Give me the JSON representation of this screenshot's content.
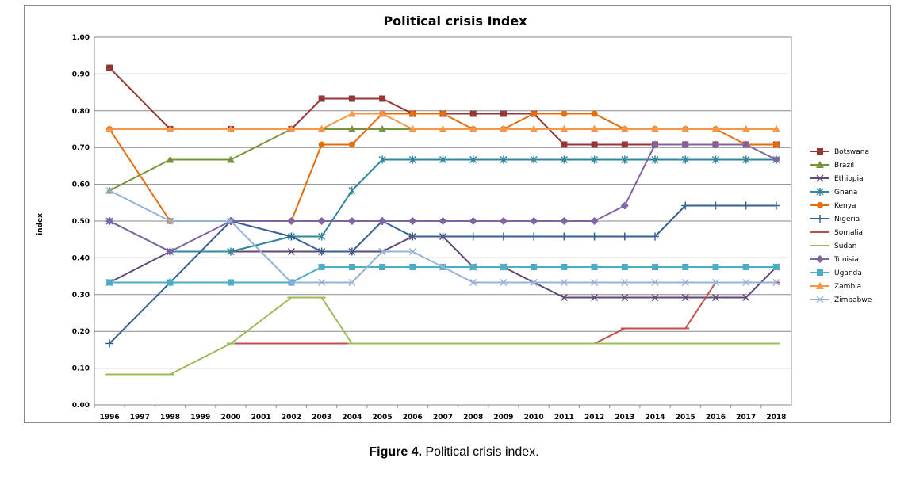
{
  "caption": {
    "label": "Figure 4.",
    "text": "Political crisis index."
  },
  "chart_data": {
    "type": "line",
    "title": "Political crisis Index",
    "xlabel": "",
    "ylabel": "index",
    "ylim": [
      0,
      1
    ],
    "yticks": [
      "0.00",
      "0.10",
      "0.20",
      "0.30",
      "0.40",
      "0.50",
      "0.60",
      "0.70",
      "0.80",
      "0.90",
      "1.00"
    ],
    "categories": [
      "1996",
      "1997",
      "1998",
      "1999",
      "2000",
      "2001",
      "2002",
      "2003",
      "2004",
      "2005",
      "2006",
      "2007",
      "2008",
      "2009",
      "2010",
      "2011",
      "2012",
      "2013",
      "2014",
      "2015",
      "2016",
      "2017",
      "2018"
    ],
    "grid": true,
    "legend": "right",
    "series": [
      {
        "name": "Botswana",
        "color": "#943634",
        "marker": "square",
        "points": [
          [
            "1996",
            0.917
          ],
          [
            "1998",
            0.75
          ],
          [
            "2000",
            0.75
          ],
          [
            "2002",
            0.75
          ],
          [
            "2003",
            0.833
          ],
          [
            "2004",
            0.833
          ],
          [
            "2005",
            0.833
          ],
          [
            "2006",
            0.792
          ],
          [
            "2007",
            0.792
          ],
          [
            "2008",
            0.792
          ],
          [
            "2009",
            0.792
          ],
          [
            "2010",
            0.792
          ],
          [
            "2011",
            0.708
          ],
          [
            "2012",
            0.708
          ],
          [
            "2013",
            0.708
          ],
          [
            "2014",
            0.708
          ],
          [
            "2015",
            0.708
          ],
          [
            "2016",
            0.708
          ],
          [
            "2017",
            0.708
          ],
          [
            "2018",
            0.708
          ]
        ]
      },
      {
        "name": "Brazil",
        "color": "#77933c",
        "marker": "triangle",
        "points": [
          [
            "1996",
            0.583
          ],
          [
            "1998",
            0.667
          ],
          [
            "2000",
            0.667
          ],
          [
            "2002",
            0.75
          ],
          [
            "2003",
            0.75
          ],
          [
            "2004",
            0.75
          ],
          [
            "2005",
            0.75
          ],
          [
            "2006",
            0.75
          ],
          [
            "2007",
            0.75
          ],
          [
            "2008",
            0.75
          ],
          [
            "2009",
            0.75
          ],
          [
            "2010",
            0.75
          ],
          [
            "2011",
            0.75
          ],
          [
            "2012",
            0.75
          ],
          [
            "2013",
            0.75
          ],
          [
            "2014",
            0.75
          ],
          [
            "2015",
            0.75
          ],
          [
            "2016",
            0.75
          ],
          [
            "2017",
            0.75
          ],
          [
            "2018",
            0.75
          ]
        ]
      },
      {
        "name": "Ethiopia",
        "color": "#5f497a",
        "marker": "x",
        "points": [
          [
            "1996",
            0.333
          ],
          [
            "1998",
            0.417
          ],
          [
            "2000",
            0.417
          ],
          [
            "2002",
            0.417
          ],
          [
            "2003",
            0.417
          ],
          [
            "2004",
            0.417
          ],
          [
            "2005",
            0.417
          ],
          [
            "2006",
            0.458
          ],
          [
            "2007",
            0.458
          ],
          [
            "2008",
            0.375
          ],
          [
            "2009",
            0.375
          ],
          [
            "2010",
            0.333
          ],
          [
            "2011",
            0.292
          ],
          [
            "2012",
            0.292
          ],
          [
            "2013",
            0.292
          ],
          [
            "2014",
            0.292
          ],
          [
            "2015",
            0.292
          ],
          [
            "2016",
            0.292
          ],
          [
            "2017",
            0.292
          ],
          [
            "2018",
            0.375
          ]
        ]
      },
      {
        "name": "Ghana",
        "color": "#31859c",
        "marker": "asterisk",
        "points": [
          [
            "1996",
            0.5
          ],
          [
            "1998",
            0.417
          ],
          [
            "2000",
            0.417
          ],
          [
            "2002",
            0.458
          ],
          [
            "2003",
            0.458
          ],
          [
            "2004",
            0.583
          ],
          [
            "2005",
            0.667
          ],
          [
            "2006",
            0.667
          ],
          [
            "2007",
            0.667
          ],
          [
            "2008",
            0.667
          ],
          [
            "2009",
            0.667
          ],
          [
            "2010",
            0.667
          ],
          [
            "2011",
            0.667
          ],
          [
            "2012",
            0.667
          ],
          [
            "2013",
            0.667
          ],
          [
            "2014",
            0.667
          ],
          [
            "2015",
            0.667
          ],
          [
            "2016",
            0.667
          ],
          [
            "2017",
            0.667
          ],
          [
            "2018",
            0.667
          ]
        ]
      },
      {
        "name": "Kenya",
        "color": "#e46c0a",
        "marker": "circle",
        "points": [
          [
            "1996",
            0.75
          ],
          [
            "1998",
            0.5
          ],
          [
            "2000",
            0.5
          ],
          [
            "2002",
            0.5
          ],
          [
            "2003",
            0.708
          ],
          [
            "2004",
            0.708
          ],
          [
            "2005",
            0.792
          ],
          [
            "2006",
            0.792
          ],
          [
            "2007",
            0.792
          ],
          [
            "2008",
            0.75
          ],
          [
            "2009",
            0.75
          ],
          [
            "2010",
            0.792
          ],
          [
            "2011",
            0.792
          ],
          [
            "2012",
            0.792
          ],
          [
            "2013",
            0.75
          ],
          [
            "2014",
            0.75
          ],
          [
            "2015",
            0.75
          ],
          [
            "2016",
            0.75
          ],
          [
            "2017",
            0.708
          ],
          [
            "2018",
            0.708
          ]
        ]
      },
      {
        "name": "Nigeria",
        "color": "#366092",
        "marker": "plus",
        "points": [
          [
            "1996",
            0.167
          ],
          [
            "1998",
            0.333
          ],
          [
            "2000",
            0.5
          ],
          [
            "2002",
            0.458
          ],
          [
            "2003",
            0.417
          ],
          [
            "2004",
            0.417
          ],
          [
            "2005",
            0.5
          ],
          [
            "2006",
            0.458
          ],
          [
            "2007",
            0.458
          ],
          [
            "2008",
            0.458
          ],
          [
            "2009",
            0.458
          ],
          [
            "2010",
            0.458
          ],
          [
            "2011",
            0.458
          ],
          [
            "2012",
            0.458
          ],
          [
            "2013",
            0.458
          ],
          [
            "2014",
            0.458
          ],
          [
            "2015",
            0.542
          ],
          [
            "2016",
            0.542
          ],
          [
            "2017",
            0.542
          ],
          [
            "2018",
            0.542
          ]
        ]
      },
      {
        "name": "Somalia",
        "color": "#c0504d",
        "marker": "dash",
        "points": [
          [
            "2000",
            0.167
          ],
          [
            "2002",
            0.167
          ],
          [
            "2003",
            0.167
          ],
          [
            "2004",
            0.167
          ],
          [
            "2005",
            0.167
          ],
          [
            "2006",
            0.167
          ],
          [
            "2007",
            0.167
          ],
          [
            "2008",
            0.167
          ],
          [
            "2009",
            0.167
          ],
          [
            "2010",
            0.167
          ],
          [
            "2011",
            0.167
          ],
          [
            "2012",
            0.167
          ],
          [
            "2013",
            0.208
          ],
          [
            "2014",
            0.208
          ],
          [
            "2015",
            0.208
          ],
          [
            "2016",
            0.333
          ],
          [
            "2017",
            0.333
          ],
          [
            "2018",
            0.333
          ]
        ]
      },
      {
        "name": "Sudan",
        "color": "#9bbb59",
        "marker": "dash",
        "points": [
          [
            "1996",
            0.083
          ],
          [
            "1998",
            0.083
          ],
          [
            "2000",
            0.167
          ],
          [
            "2002",
            0.292
          ],
          [
            "2003",
            0.292
          ],
          [
            "2004",
            0.167
          ],
          [
            "2005",
            0.167
          ],
          [
            "2006",
            0.167
          ],
          [
            "2007",
            0.167
          ],
          [
            "2008",
            0.167
          ],
          [
            "2009",
            0.167
          ],
          [
            "2010",
            0.167
          ],
          [
            "2011",
            0.167
          ],
          [
            "2012",
            0.167
          ],
          [
            "2013",
            0.167
          ],
          [
            "2014",
            0.167
          ],
          [
            "2015",
            0.167
          ],
          [
            "2016",
            0.167
          ],
          [
            "2017",
            0.167
          ],
          [
            "2018",
            0.167
          ]
        ]
      },
      {
        "name": "Tunisia",
        "color": "#8064a2",
        "marker": "diamond",
        "points": [
          [
            "1996",
            0.5
          ],
          [
            "1998",
            0.417
          ],
          [
            "2000",
            0.5
          ],
          [
            "2002",
            0.5
          ],
          [
            "2003",
            0.5
          ],
          [
            "2004",
            0.5
          ],
          [
            "2005",
            0.5
          ],
          [
            "2006",
            0.5
          ],
          [
            "2007",
            0.5
          ],
          [
            "2008",
            0.5
          ],
          [
            "2009",
            0.5
          ],
          [
            "2010",
            0.5
          ],
          [
            "2011",
            0.5
          ],
          [
            "2012",
            0.5
          ],
          [
            "2013",
            0.542
          ],
          [
            "2014",
            0.708
          ],
          [
            "2015",
            0.708
          ],
          [
            "2016",
            0.708
          ],
          [
            "2017",
            0.708
          ],
          [
            "2018",
            0.667
          ]
        ]
      },
      {
        "name": "Uganda",
        "color": "#4bacc6",
        "marker": "square",
        "points": [
          [
            "1996",
            0.333
          ],
          [
            "1998",
            0.333
          ],
          [
            "2000",
            0.333
          ],
          [
            "2002",
            0.333
          ],
          [
            "2003",
            0.375
          ],
          [
            "2004",
            0.375
          ],
          [
            "2005",
            0.375
          ],
          [
            "2006",
            0.375
          ],
          [
            "2007",
            0.375
          ],
          [
            "2008",
            0.375
          ],
          [
            "2009",
            0.375
          ],
          [
            "2010",
            0.375
          ],
          [
            "2011",
            0.375
          ],
          [
            "2012",
            0.375
          ],
          [
            "2013",
            0.375
          ],
          [
            "2014",
            0.375
          ],
          [
            "2015",
            0.375
          ],
          [
            "2016",
            0.375
          ],
          [
            "2017",
            0.375
          ],
          [
            "2018",
            0.375
          ]
        ]
      },
      {
        "name": "Zambia",
        "color": "#f79646",
        "marker": "triangle",
        "points": [
          [
            "1996",
            0.75
          ],
          [
            "1998",
            0.75
          ],
          [
            "2000",
            0.75
          ],
          [
            "2002",
            0.75
          ],
          [
            "2003",
            0.75
          ],
          [
            "2004",
            0.792
          ],
          [
            "2005",
            0.792
          ],
          [
            "2006",
            0.75
          ],
          [
            "2007",
            0.75
          ],
          [
            "2008",
            0.75
          ],
          [
            "2009",
            0.75
          ],
          [
            "2010",
            0.75
          ],
          [
            "2011",
            0.75
          ],
          [
            "2012",
            0.75
          ],
          [
            "2013",
            0.75
          ],
          [
            "2014",
            0.75
          ],
          [
            "2015",
            0.75
          ],
          [
            "2016",
            0.75
          ],
          [
            "2017",
            0.75
          ],
          [
            "2018",
            0.75
          ]
        ]
      },
      {
        "name": "Zimbabwe",
        "color": "#95b3d7",
        "marker": "x",
        "points": [
          [
            "1996",
            0.583
          ],
          [
            "1998",
            0.5
          ],
          [
            "2000",
            0.5
          ],
          [
            "2002",
            0.333
          ],
          [
            "2003",
            0.333
          ],
          [
            "2004",
            0.333
          ],
          [
            "2005",
            0.417
          ],
          [
            "2006",
            0.417
          ],
          [
            "2007",
            0.375
          ],
          [
            "2008",
            0.333
          ],
          [
            "2009",
            0.333
          ],
          [
            "2010",
            0.333
          ],
          [
            "2011",
            0.333
          ],
          [
            "2012",
            0.333
          ],
          [
            "2013",
            0.333
          ],
          [
            "2014",
            0.333
          ],
          [
            "2015",
            0.333
          ],
          [
            "2016",
            0.333
          ],
          [
            "2017",
            0.333
          ],
          [
            "2018",
            0.333
          ]
        ]
      }
    ]
  }
}
